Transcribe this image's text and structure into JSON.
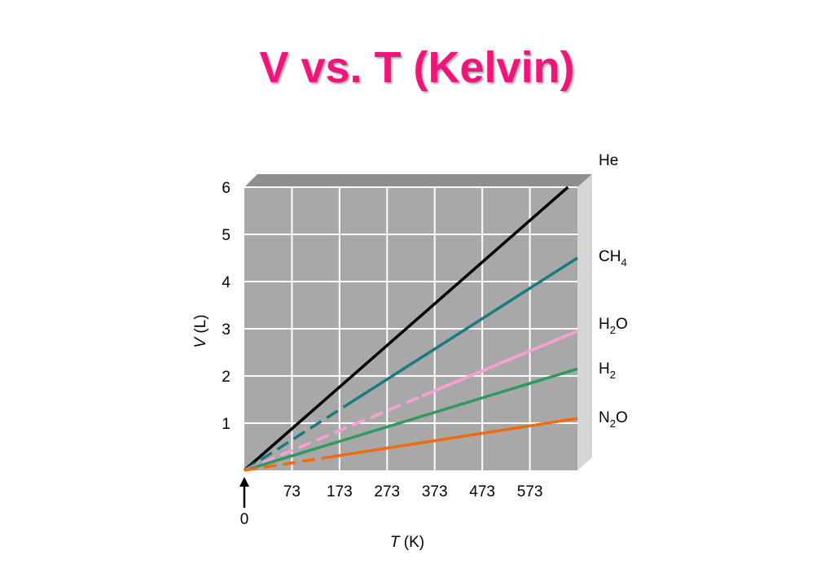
{
  "title": "V vs. T (Kelvin)",
  "colors": {
    "title": "#f0157a",
    "plot_face": "#a8a8a8",
    "grid": "#ffffff",
    "He": "#000000",
    "CH4": "#1a7a80",
    "H2O": "#ff9fd6",
    "H2": "#2f9a5e",
    "N2O": "#f26a10"
  },
  "chart_data": {
    "type": "line",
    "title": "V vs. T (Kelvin)",
    "xlabel": {
      "var": "T",
      "unit": "(K)"
    },
    "ylabel": {
      "var": "V",
      "unit": "(L)"
    },
    "xlim": [
      0,
      700
    ],
    "ylim": [
      0,
      6
    ],
    "x_ticks": [
      "73",
      "173",
      "273",
      "373",
      "473",
      "573"
    ],
    "x_tick_values": [
      100,
      200,
      300,
      400,
      500,
      600
    ],
    "y_ticks": [
      "1",
      "2",
      "3",
      "4",
      "5",
      "6"
    ],
    "y_tick_values": [
      1,
      2,
      3,
      4,
      5,
      6
    ],
    "origin_label": "0",
    "grid": true,
    "series": [
      {
        "name": "He",
        "label_main": "He",
        "label_sub": "",
        "label_tail": "",
        "color_key": "He",
        "x": [
          0,
          680
        ],
        "y": [
          0,
          6.0
        ],
        "extrap_to": 0
      },
      {
        "name": "CH4",
        "label_main": "CH",
        "label_sub": "4",
        "label_tail": "",
        "color_key": "CH4",
        "x": [
          0,
          700
        ],
        "y": [
          0,
          4.5
        ],
        "extrap_to": 210
      },
      {
        "name": "H2O",
        "label_main": "H",
        "label_sub": "2",
        "label_tail": "O",
        "color_key": "H2O",
        "x": [
          0,
          700
        ],
        "y": [
          0,
          2.95
        ],
        "extrap_to": 373
      },
      {
        "name": "H2",
        "label_main": "H",
        "label_sub": "2",
        "label_tail": "",
        "color_key": "H2",
        "x": [
          0,
          700
        ],
        "y": [
          0,
          2.15
        ],
        "extrap_to": 0
      },
      {
        "name": "N2O",
        "label_main": "N",
        "label_sub": "2",
        "label_tail": "O",
        "color_key": "N2O",
        "x": [
          0,
          700
        ],
        "y": [
          0,
          1.1
        ],
        "extrap_to": 180
      }
    ]
  }
}
